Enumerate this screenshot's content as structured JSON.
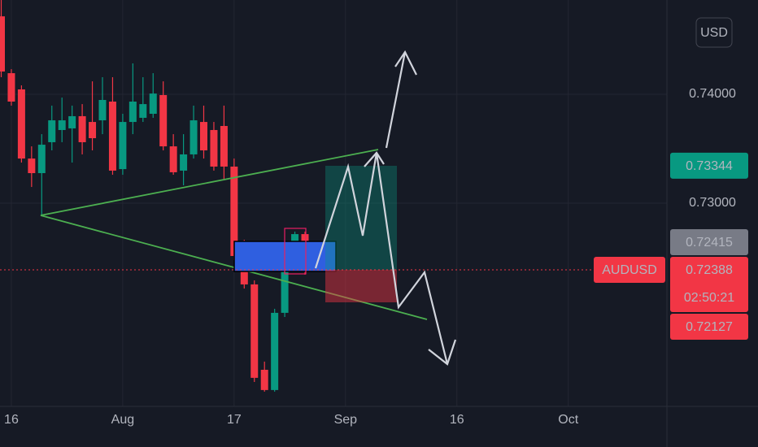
{
  "chart_data": {
    "type": "candlestick",
    "symbol": "AUDUSD",
    "currency": "USD",
    "categories": [
      null,
      "16",
      null,
      null,
      null,
      null,
      null,
      null,
      null,
      null,
      null,
      null,
      "Aug",
      null,
      null,
      null,
      null,
      null,
      null,
      null,
      null,
      null,
      null,
      "17",
      null,
      null,
      null,
      null,
      null,
      null,
      null,
      null,
      null,
      null,
      "Sep",
      null,
      null,
      null,
      null,
      null,
      null,
      null,
      null,
      null,
      null,
      "16",
      null,
      null,
      null,
      null,
      null,
      null,
      null,
      null,
      null,
      null,
      "Oct",
      null,
      null,
      null,
      null,
      null,
      null,
      null,
      null,
      null
    ],
    "open": [
      0.74716,
      0.74194,
      0.74045,
      0.7341,
      0.73276,
      0.7356,
      0.73672,
      0.73687,
      0.73799,
      0.73746,
      0.73761,
      0.73933,
      0.73313,
      0.73746,
      0.73784,
      0.73821,
      0.73993,
      0.73522,
      0.73299,
      0.73448,
      0.73746,
      0.73672,
      0.73709,
      0.73336,
      0.72515,
      0.72254,
      0.7147,
      0.71284,
      0.71993,
      0.72552,
      0.72716,
      null,
      null,
      null,
      null,
      null,
      null,
      null,
      null,
      null,
      null,
      null,
      null,
      null,
      null,
      null,
      null,
      null,
      null,
      null,
      null,
      null,
      null,
      null,
      null,
      null,
      null,
      null,
      null,
      null,
      null,
      null,
      null,
      null,
      null,
      null
    ],
    "high": [
      0.74866,
      0.74231,
      0.74082,
      0.73522,
      0.73634,
      0.73896,
      0.7397,
      0.73896,
      0.7391,
      0.74119,
      0.74157,
      0.74157,
      0.73821,
      0.74284,
      0.74157,
      0.74194,
      0.74119,
      0.73634,
      0.73634,
      0.73896,
      0.73896,
      0.73746,
      0.73896,
      0.7341,
      0.72664,
      0.72291,
      0.71545,
      0.7203,
      0.7259,
      0.72739,
      0.72739,
      null,
      null,
      null,
      null,
      null,
      null,
      null,
      null,
      null,
      null,
      null,
      null,
      null,
      null,
      null,
      null,
      null,
      null,
      null,
      null,
      null,
      null,
      null,
      null,
      null,
      null,
      null,
      null,
      null,
      null,
      null,
      null,
      null,
      null,
      null
    ],
    "low": [
      0.74157,
      0.73896,
      0.73373,
      0.73149,
      0.72888,
      0.73485,
      0.7356,
      0.73373,
      0.73448,
      0.73485,
      0.73634,
      0.73261,
      0.73261,
      0.73634,
      0.73746,
      0.73784,
      0.73485,
      0.73261,
      0.73164,
      0.7341,
      0.7341,
      0.73299,
      0.73224,
      0.72478,
      0.72216,
      0.71358,
      0.71269,
      0.71269,
      0.71955,
      0.72478,
      0.72343,
      null,
      null,
      null,
      null,
      null,
      null,
      null,
      null,
      null,
      null,
      null,
      null,
      null,
      null,
      null,
      null,
      null,
      null,
      null,
      null,
      null,
      null,
      null,
      null,
      null,
      null,
      null,
      null,
      null,
      null,
      null,
      null,
      null,
      null,
      null
    ],
    "close": [
      0.74209,
      0.73933,
      0.7341,
      0.73276,
      0.73537,
      0.73761,
      0.73761,
      0.73799,
      0.7356,
      0.73597,
      0.73948,
      0.73299,
      0.73746,
      0.73933,
      0.7391,
      0.74007,
      0.73522,
      0.73284,
      0.73448,
      0.73761,
      0.73485,
      0.73336,
      0.73336,
      0.72515,
      0.72254,
      0.71396,
      0.71284,
      0.71993,
      0.72552,
      0.72716,
      0.72388,
      null,
      null,
      null,
      null,
      null,
      null,
      null,
      null,
      null,
      null,
      null,
      null,
      null,
      null,
      null,
      null,
      null,
      null,
      null,
      null,
      null,
      null,
      null,
      null,
      null,
      null,
      null,
      null,
      null,
      null,
      null,
      null,
      null,
      null,
      null
    ],
    "up_color": "#089981",
    "down_color": "#f23645",
    "ylim": [
      0.71134,
      0.74866
    ],
    "yticks": [
      {
        "value": 0.73,
        "label": "0.73000"
      },
      {
        "value": 0.74,
        "label": "0.74000"
      }
    ],
    "grid": true,
    "price_labels": [
      {
        "value": 0.73344,
        "label": "0.73344",
        "color": "#089981"
      },
      {
        "value": 0.72415,
        "label": "0.72415",
        "color": "#787b86"
      },
      {
        "value": 0.72388,
        "label": "0.72388",
        "color": "#f23645",
        "countdown": "02:50:21"
      },
      {
        "value": 0.72127,
        "label": "0.72127",
        "color": "#f23645"
      }
    ]
  }
}
